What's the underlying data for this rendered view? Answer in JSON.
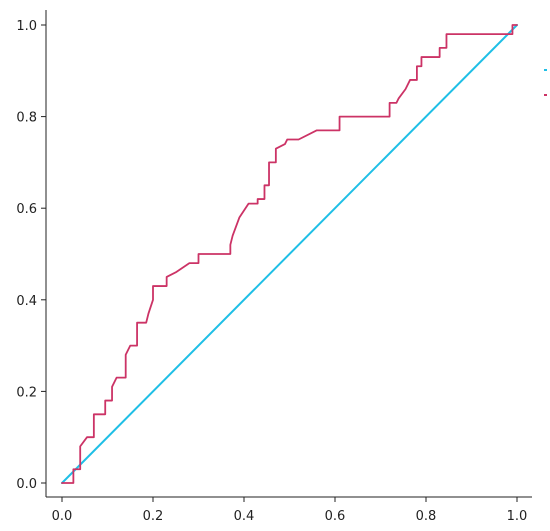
{
  "chart_data": {
    "type": "line",
    "title": "",
    "xlabel": "",
    "ylabel": "",
    "xlim": [
      0.0,
      1.0
    ],
    "ylim": [
      0.0,
      1.0
    ],
    "grid": false,
    "legend_position": "right",
    "x_ticks": [
      "0.0",
      "0.2",
      "0.4",
      "0.6",
      "0.8",
      "1.0"
    ],
    "y_ticks": [
      "0.0",
      "0.2",
      "0.4",
      "0.6",
      "0.8",
      "1.0"
    ],
    "series": [
      {
        "color": "#1fbfe6",
        "points": [
          [
            0.0,
            0.0
          ],
          [
            1.0,
            1.0
          ]
        ]
      },
      {
        "color": "#cc3366",
        "points": [
          [
            0.0,
            0.0
          ],
          [
            0.025,
            0.0
          ],
          [
            0.025,
            0.03
          ],
          [
            0.04,
            0.03
          ],
          [
            0.04,
            0.08
          ],
          [
            0.055,
            0.1
          ],
          [
            0.07,
            0.1
          ],
          [
            0.07,
            0.15
          ],
          [
            0.095,
            0.15
          ],
          [
            0.095,
            0.18
          ],
          [
            0.11,
            0.18
          ],
          [
            0.11,
            0.21
          ],
          [
            0.12,
            0.23
          ],
          [
            0.14,
            0.23
          ],
          [
            0.14,
            0.28
          ],
          [
            0.15,
            0.3
          ],
          [
            0.165,
            0.3
          ],
          [
            0.165,
            0.35
          ],
          [
            0.185,
            0.35
          ],
          [
            0.19,
            0.37
          ],
          [
            0.2,
            0.4
          ],
          [
            0.2,
            0.43
          ],
          [
            0.23,
            0.43
          ],
          [
            0.23,
            0.45
          ],
          [
            0.25,
            0.46
          ],
          [
            0.28,
            0.48
          ],
          [
            0.3,
            0.48
          ],
          [
            0.3,
            0.5
          ],
          [
            0.37,
            0.5
          ],
          [
            0.37,
            0.52
          ],
          [
            0.375,
            0.54
          ],
          [
            0.39,
            0.58
          ],
          [
            0.41,
            0.61
          ],
          [
            0.43,
            0.61
          ],
          [
            0.43,
            0.62
          ],
          [
            0.445,
            0.62
          ],
          [
            0.445,
            0.65
          ],
          [
            0.455,
            0.65
          ],
          [
            0.455,
            0.7
          ],
          [
            0.47,
            0.7
          ],
          [
            0.47,
            0.73
          ],
          [
            0.49,
            0.74
          ],
          [
            0.495,
            0.75
          ],
          [
            0.52,
            0.75
          ],
          [
            0.56,
            0.77
          ],
          [
            0.61,
            0.77
          ],
          [
            0.61,
            0.8
          ],
          [
            0.72,
            0.8
          ],
          [
            0.72,
            0.83
          ],
          [
            0.735,
            0.83
          ],
          [
            0.74,
            0.84
          ],
          [
            0.755,
            0.86
          ],
          [
            0.765,
            0.88
          ],
          [
            0.78,
            0.88
          ],
          [
            0.78,
            0.91
          ],
          [
            0.79,
            0.91
          ],
          [
            0.79,
            0.93
          ],
          [
            0.83,
            0.93
          ],
          [
            0.83,
            0.95
          ],
          [
            0.845,
            0.95
          ],
          [
            0.845,
            0.98
          ],
          [
            0.99,
            0.98
          ],
          [
            0.99,
            1.0
          ],
          [
            1.0,
            1.0
          ]
        ]
      }
    ]
  }
}
